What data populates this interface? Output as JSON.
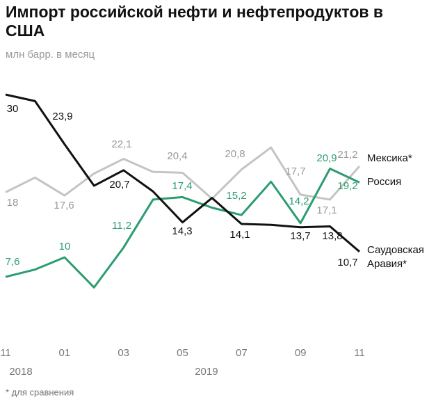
{
  "chart_data": {
    "type": "line",
    "title": "Импорт российской нефти и нефтепродуктов в США",
    "subtitle": "млн барр. в месяц",
    "categories": [
      "11",
      null,
      "01",
      null,
      "03",
      null,
      "05",
      null,
      "07",
      null,
      "09",
      null,
      "11"
    ],
    "years": [
      "2018",
      "2019"
    ],
    "ylim": [
      0,
      30
    ],
    "series": [
      {
        "name": "Мексика*",
        "color": "#c4c4c4",
        "values": [
          18,
          19.8,
          17.6,
          20.3,
          22.1,
          20.5,
          20.4,
          17.2,
          20.8,
          23.5,
          17.7,
          17.1,
          21.2
        ],
        "value_labels": [
          "18",
          null,
          "17,6",
          null,
          "22,1",
          null,
          "20,4",
          null,
          "20,8",
          null,
          "17,7",
          "17,1",
          "21,2"
        ]
      },
      {
        "name": "Россия",
        "color": "#2a9d6f",
        "values": [
          7.6,
          8.5,
          10,
          6.3,
          11.2,
          17.1,
          17.4,
          16.1,
          15.2,
          19.3,
          14.2,
          20.9,
          19.2
        ],
        "value_labels": [
          "7,6",
          null,
          "10",
          null,
          "11,2",
          null,
          "17,4",
          null,
          "15,2",
          null,
          "14,2",
          "20,9",
          "19,2"
        ]
      },
      {
        "name": "Саудовская Аравия*",
        "color": "#111111",
        "values": [
          30,
          29.2,
          23.9,
          18.8,
          20.7,
          18.1,
          14.3,
          17.3,
          14.1,
          14.0,
          13.7,
          13.8,
          10.7
        ],
        "value_labels": [
          "30",
          null,
          "23,9",
          null,
          "20,7",
          null,
          "14,3",
          null,
          "14,1",
          null,
          "13,7",
          "13,8",
          "10,7"
        ]
      }
    ],
    "footnote": "* для сравнения"
  }
}
